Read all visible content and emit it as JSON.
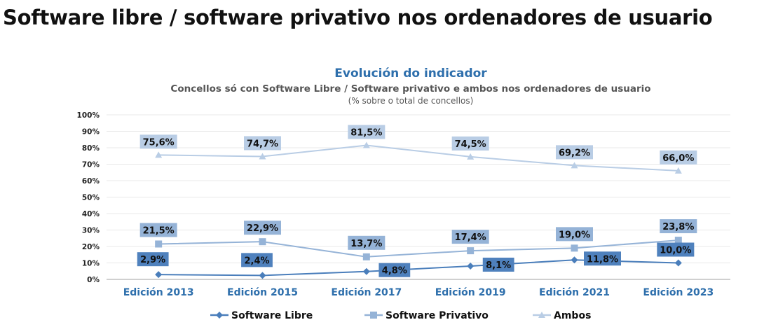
{
  "page_title": "Software libre / software privativo nos ordenadores de usuario",
  "chart_data": {
    "type": "line",
    "title": "Evolución do indicador",
    "subtitle": "Concellos só con Software Libre / Software privativo e ambos nos ordenadores de usuario",
    "note": "(% sobre o total de concellos)",
    "xlabel": "",
    "ylabel": "",
    "categories": [
      "Edición 2013",
      "Edición 2015",
      "Edición 2017",
      "Edición 2019",
      "Edición 2021",
      "Edición 2023"
    ],
    "ylim": [
      0,
      100
    ],
    "yticks": [
      "0%",
      "10%",
      "20%",
      "30%",
      "40%",
      "50%",
      "60%",
      "70%",
      "80%",
      "90%",
      "100%"
    ],
    "grid": true,
    "legend_position": "bottom",
    "series": [
      {
        "name": "Software Libre",
        "marker": "diamond",
        "color": "#4a7ebb",
        "label_bg": "#4f81bd",
        "values": [
          2.9,
          2.4,
          4.8,
          8.1,
          11.8,
          10.0
        ],
        "labels": [
          "2,9%",
          "2,4%",
          "4,8%",
          "8,1%",
          "11,8%",
          "10,0%"
        ]
      },
      {
        "name": "Software Privativo",
        "marker": "square",
        "color": "#95b3d7",
        "label_bg": "#95b3d7",
        "values": [
          21.5,
          22.9,
          13.7,
          17.4,
          19.0,
          23.8
        ],
        "labels": [
          "21,5%",
          "22,9%",
          "13,7%",
          "17,4%",
          "19,0%",
          "23,8%"
        ]
      },
      {
        "name": "Ambos",
        "marker": "triangle",
        "color": "#b9cde5",
        "label_bg": "#b9cde5",
        "values": [
          75.6,
          74.7,
          81.5,
          74.5,
          69.2,
          66.0
        ],
        "labels": [
          "75,6%",
          "74,7%",
          "81,5%",
          "74,5%",
          "69,2%",
          "66,0%"
        ]
      }
    ],
    "title_color": "#2e6fac",
    "category_color": "#2e6fac"
  }
}
